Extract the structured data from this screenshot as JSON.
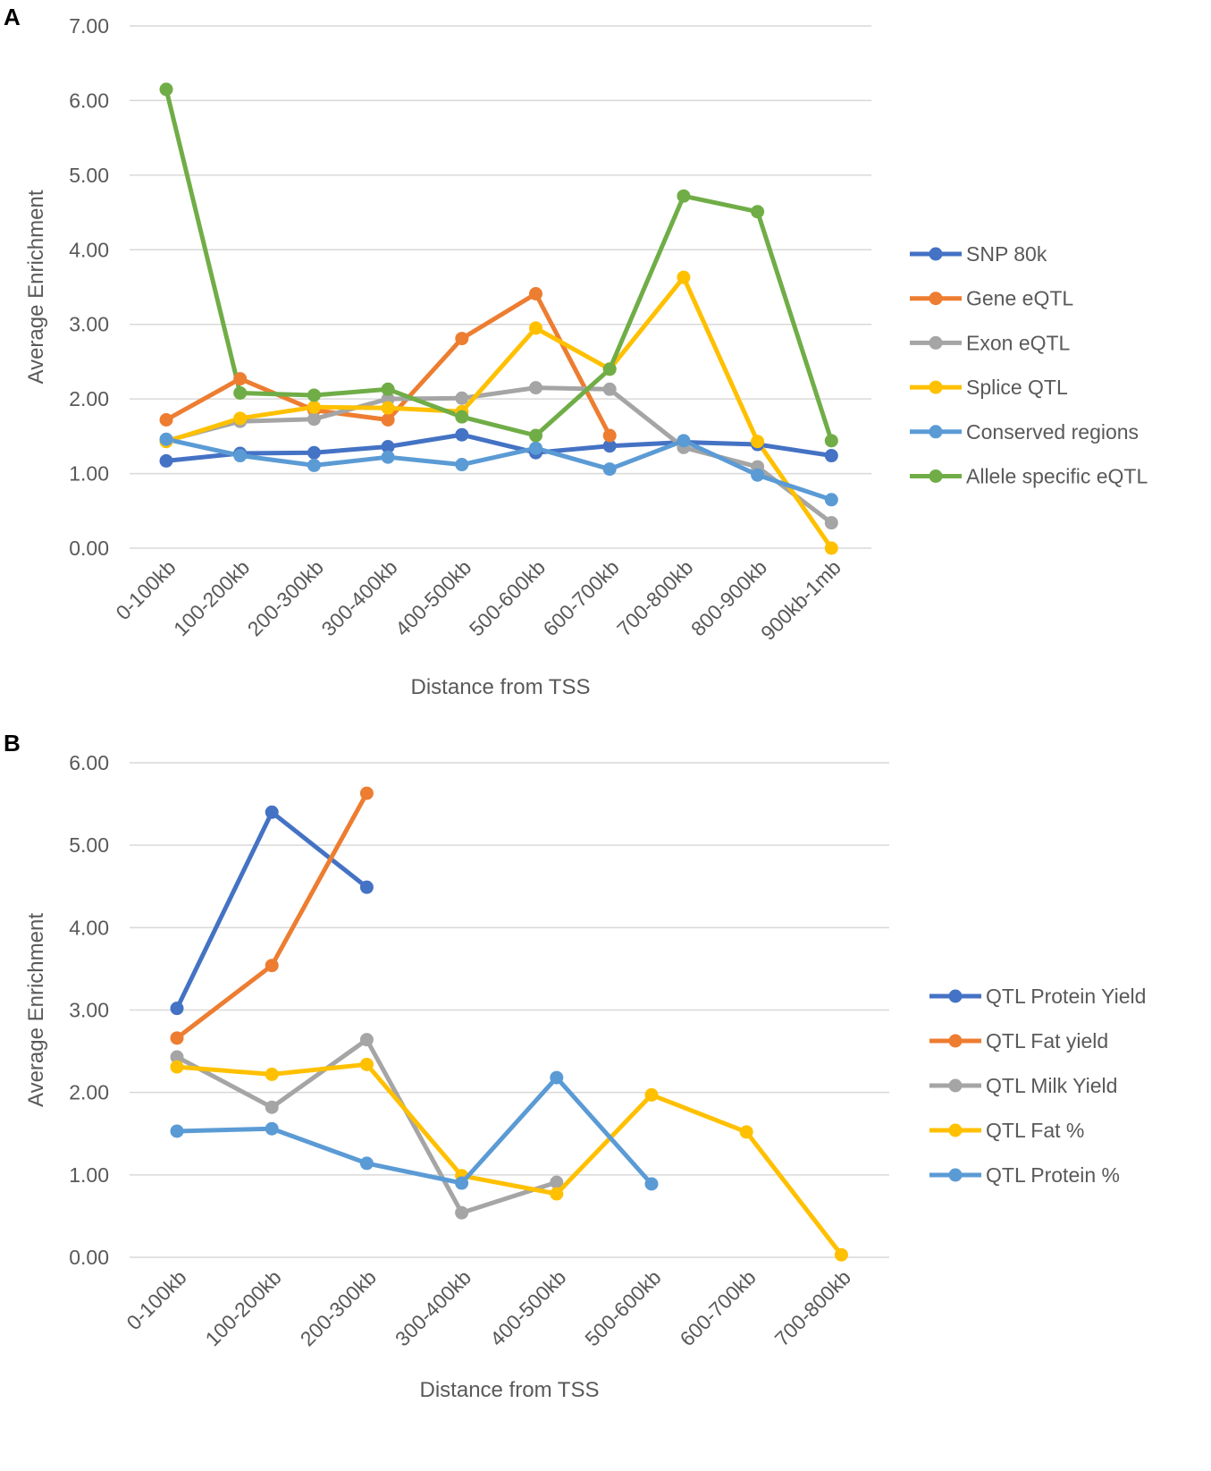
{
  "chart_data": [
    {
      "panel": "A",
      "type": "line",
      "title": "",
      "xlabel": "Distance from TSS",
      "ylabel": "Average Enrichment",
      "ylim": [
        0,
        7
      ],
      "yticks": [
        "0.00",
        "1.00",
        "2.00",
        "3.00",
        "4.00",
        "5.00",
        "6.00",
        "7.00"
      ],
      "grid": "horizontal",
      "legend": "right",
      "categories": [
        "0-100kb",
        "100-200kb",
        "200-300kb",
        "300-400kb",
        "400-500kb",
        "500-600kb",
        "600-700kb",
        "700-800kb",
        "800-900kb",
        "900kb-1mb"
      ],
      "series": [
        {
          "name": "SNP 80k",
          "color": "#4472C4",
          "values": [
            1.17,
            1.27,
            1.28,
            1.36,
            1.52,
            1.28,
            1.37,
            1.42,
            1.39,
            1.24
          ]
        },
        {
          "name": "Gene eQTL",
          "color": "#ED7D31",
          "values": [
            1.72,
            2.27,
            1.85,
            1.72,
            2.81,
            3.41,
            1.51,
            null,
            null,
            null
          ]
        },
        {
          "name": "Exon eQTL",
          "color": "#A5A5A5",
          "values": [
            1.44,
            1.7,
            1.73,
            2.0,
            2.01,
            2.15,
            2.13,
            1.35,
            1.09,
            0.34
          ]
        },
        {
          "name": "Splice QTL",
          "color": "#FFC000",
          "values": [
            1.43,
            1.74,
            1.89,
            1.88,
            1.83,
            2.95,
            2.4,
            3.63,
            1.43,
            0.0
          ]
        },
        {
          "name": "Conserved regions",
          "color": "#5B9BD5",
          "values": [
            1.46,
            1.24,
            1.11,
            1.22,
            1.12,
            1.34,
            1.06,
            1.44,
            0.98,
            0.65
          ]
        },
        {
          "name": "Allele specific eQTL",
          "color": "#70AD47",
          "values": [
            6.15,
            2.08,
            2.05,
            2.13,
            1.76,
            1.51,
            2.4,
            4.72,
            4.51,
            1.44
          ]
        }
      ]
    },
    {
      "panel": "B",
      "type": "line",
      "title": "",
      "xlabel": "Distance from TSS",
      "ylabel": "Average Enrichment",
      "ylim": [
        0,
        6
      ],
      "yticks": [
        "0.00",
        "1.00",
        "2.00",
        "3.00",
        "4.00",
        "5.00",
        "6.00"
      ],
      "grid": "horizontal",
      "legend": "right",
      "categories": [
        "0-100kb",
        "100-200kb",
        "200-300kb",
        "300-400kb",
        "400-500kb",
        "500-600kb",
        "600-700kb",
        "700-800kb"
      ],
      "series": [
        {
          "name": "QTL Protein Yield",
          "color": "#4472C4",
          "values": [
            3.02,
            5.4,
            4.49,
            null,
            null,
            null,
            null,
            null
          ]
        },
        {
          "name": "QTL Fat yield",
          "color": "#ED7D31",
          "values": [
            2.66,
            3.54,
            5.63,
            null,
            null,
            null,
            null,
            null
          ]
        },
        {
          "name": "QTL Milk Yield",
          "color": "#A5A5A5",
          "values": [
            2.43,
            1.82,
            2.64,
            0.54,
            0.91,
            null,
            null,
            null
          ]
        },
        {
          "name": "QTL Fat %",
          "color": "#FFC000",
          "values": [
            2.31,
            2.22,
            2.34,
            0.99,
            0.77,
            1.97,
            1.52,
            0.03
          ]
        },
        {
          "name": "QTL Protein %",
          "color": "#5B9BD5",
          "values": [
            1.53,
            1.56,
            1.14,
            0.9,
            2.18,
            0.89,
            null,
            null
          ]
        }
      ]
    }
  ]
}
